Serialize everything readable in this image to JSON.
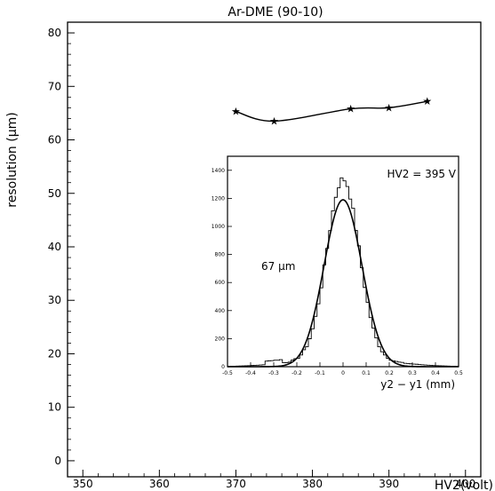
{
  "chart_data": [
    {
      "type": "line",
      "title": "Ar-DME (90-10)",
      "xlabel": "HV2(volt)",
      "ylabel": "resolution (μm)",
      "xlim": [
        348,
        402
      ],
      "ylim": [
        -3,
        82
      ],
      "xticks": [
        350,
        360,
        370,
        380,
        390,
        400
      ],
      "yticks": [
        0,
        10,
        20,
        30,
        40,
        50,
        60,
        70,
        80
      ],
      "grid": false,
      "series": [
        {
          "x": [
            370,
            375,
            385,
            390,
            395
          ],
          "values": [
            65.3,
            63.5,
            65.8,
            66.0,
            67.2
          ]
        }
      ]
    },
    {
      "type": "histogram",
      "annotation": "HV2 = 395 V",
      "width_label": "67 μm",
      "xlabel": "y2 − y1 (mm)",
      "xlim": [
        -0.5,
        0.5
      ],
      "ylim": [
        0,
        1500
      ],
      "xticks": [
        -0.5,
        -0.4,
        -0.3,
        -0.2,
        -0.1,
        0,
        0.1,
        0.2,
        0.3,
        0.4,
        0.5
      ],
      "yticks": [
        0,
        200,
        400,
        600,
        800,
        1000,
        1200,
        1400
      ],
      "fit": {
        "kind": "gaussian",
        "mean": 0.0,
        "sigma": 0.082,
        "peak": 1190
      },
      "histogram_peak": 1390,
      "bins": 80
    }
  ]
}
